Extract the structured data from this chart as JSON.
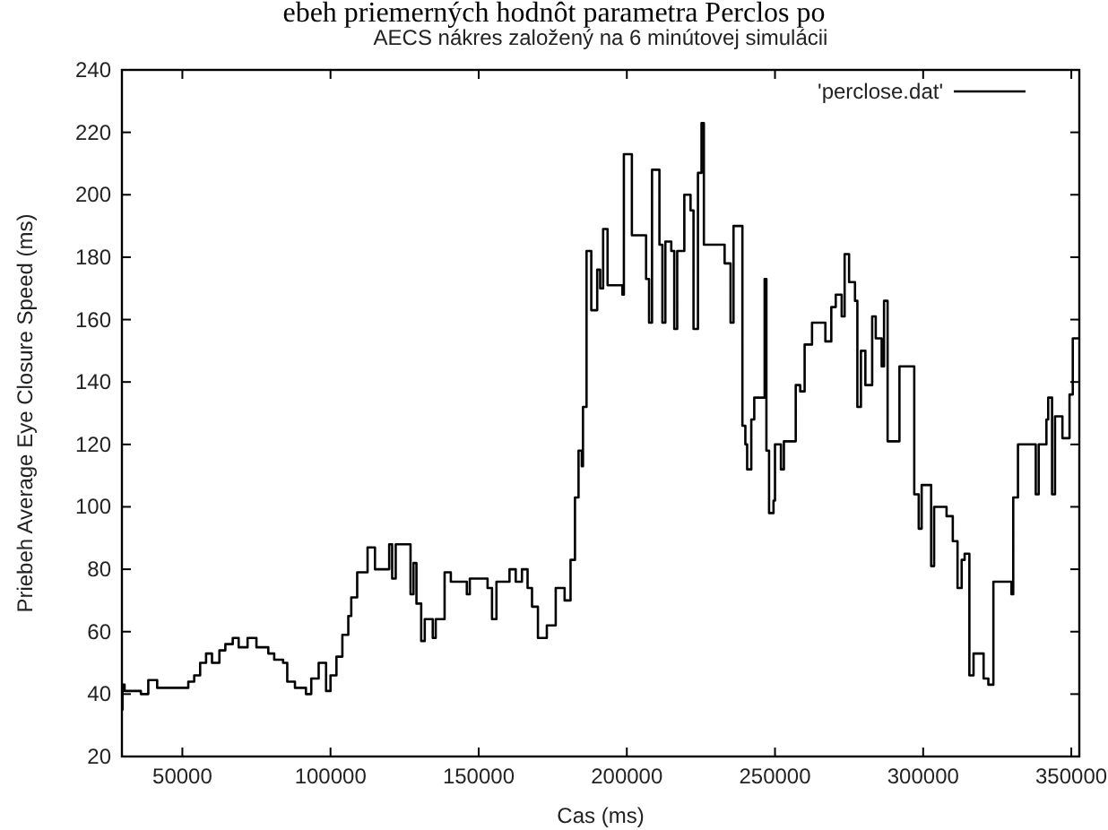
{
  "chart_data": {
    "type": "step",
    "title": "AECS nákres založený na 6 minútovej simulácii",
    "xlabel": "Cas (ms)",
    "ylabel": "Priebeh Average Eye Closure Speed (ms)",
    "annotations": [
      "ebeh priemerných hodnôt parametra Perclos po"
    ],
    "xlim": [
      29600,
      352700
    ],
    "xticks": [
      50000,
      100000,
      150000,
      200000,
      250000,
      300000,
      350000
    ],
    "ylim": [
      20,
      240
    ],
    "yticks": [
      20,
      40,
      60,
      80,
      100,
      120,
      140,
      160,
      180,
      200,
      220,
      240
    ],
    "grid": false,
    "legend": "top right",
    "marker": "none",
    "line_style": "solid",
    "series": [
      {
        "name": "'perclose.dat'",
        "color": "#000000",
        "x": [
          29600,
          29800,
          30500,
          36000,
          38500,
          41500,
          51000,
          52000,
          54000,
          56000,
          58000,
          60000,
          62500,
          64500,
          67000,
          69000,
          72000,
          75000,
          79000,
          81000,
          84000,
          85400,
          88000,
          91700,
          93500,
          96000,
          98500,
          100000,
          102000,
          104000,
          106000,
          107000,
          109000,
          112500,
          115000,
          119800,
          120800,
          122000,
          126000,
          127000,
          128000,
          129000,
          130600,
          131800,
          134500,
          135500,
          138500,
          140600,
          146000,
          147000,
          153000,
          154500,
          156000,
          160400,
          162500,
          164600,
          166500,
          168000,
          170000,
          173000,
          176000,
          179000,
          181000,
          182500,
          183700,
          184800,
          185200,
          186400,
          188000,
          190000,
          191000,
          192000,
          193500,
          198500,
          199000,
          201700,
          206500,
          207500,
          208500,
          211000,
          212000,
          213000,
          215000,
          216000,
          217000,
          219400,
          221500,
          222500,
          224000,
          225200,
          226000,
          233000,
          235000,
          236000,
          239000,
          240000,
          240600,
          242000,
          243000,
          246500,
          247100,
          248000,
          249500,
          250000,
          252000,
          253000,
          257000,
          258500,
          260000,
          262500,
          267000,
          269000,
          270500,
          272500,
          273500,
          275000,
          277000,
          277800,
          279000,
          280500,
          282800,
          284000,
          286000,
          286800,
          288000,
          292000,
          297000,
          298500,
          299500,
          302700,
          303700,
          307900,
          310000,
          311600,
          313000,
          314000,
          315600,
          317000,
          320400,
          322000,
          323700,
          329800,
          330400,
          332000,
          337000,
          338000,
          339000,
          341600,
          342200,
          343500,
          344500,
          347000,
          349400,
          350500,
          352700
        ],
        "values": [
          35,
          43,
          41,
          40,
          44.5,
          42,
          42,
          44,
          46,
          50,
          53,
          50,
          54,
          56,
          58,
          55,
          58,
          55,
          53,
          51,
          50,
          44,
          42,
          40,
          45,
          50,
          41,
          46,
          52,
          59,
          65,
          71,
          79,
          87,
          80,
          88,
          77,
          88,
          88,
          72,
          82,
          69,
          57,
          64,
          58,
          64,
          79,
          76,
          72,
          77,
          74,
          64,
          76,
          80,
          76,
          80,
          74,
          68,
          58,
          62,
          74,
          70,
          83,
          103,
          118,
          113,
          132,
          182,
          163,
          176,
          170,
          189,
          171,
          168,
          213,
          187,
          173,
          159,
          208,
          184,
          159,
          185,
          182,
          157,
          182,
          200,
          195,
          157,
          207,
          223,
          184,
          178,
          159,
          190,
          126,
          120,
          112,
          128,
          135,
          173,
          118,
          98,
          102,
          120,
          112,
          121,
          139,
          137,
          152,
          159,
          153,
          164,
          168,
          161,
          181,
          172,
          166,
          132,
          150,
          139,
          161,
          154,
          145,
          166,
          121,
          145,
          104,
          93,
          107,
          81,
          100,
          97,
          89,
          74,
          83,
          85,
          46,
          53,
          45,
          43,
          76,
          72,
          103,
          120,
          120,
          104,
          120,
          128,
          135,
          104,
          129,
          122,
          136,
          154,
          154
        ]
      }
    ]
  }
}
